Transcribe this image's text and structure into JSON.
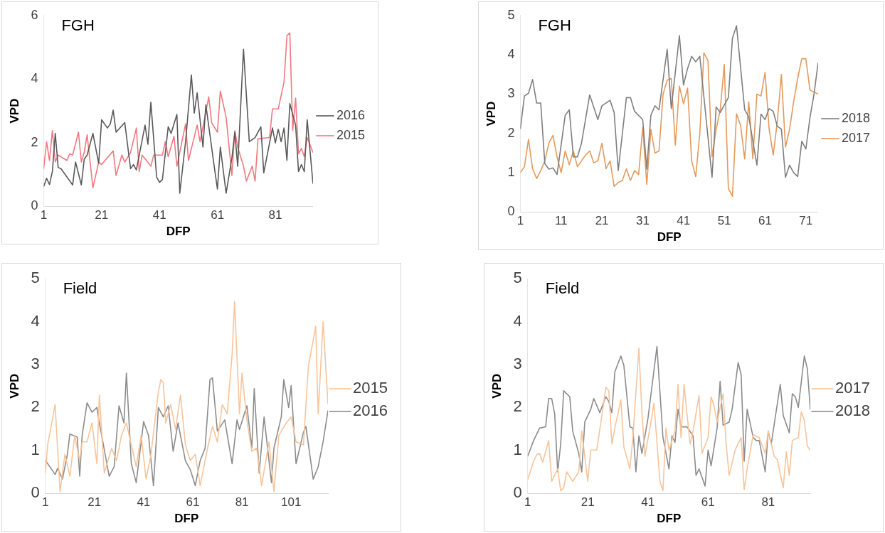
{
  "chart_data": [
    {
      "type": "line",
      "annotations": [
        "FGH"
      ],
      "xlabel": "DFP",
      "ylabel": "VPD",
      "xlim": [
        1,
        94
      ],
      "xticks": [
        1,
        21,
        41,
        61,
        81
      ],
      "ylim": [
        0,
        6
      ],
      "yticks": [
        0,
        2,
        4,
        6
      ],
      "grid": false,
      "legend": "right",
      "series": [
        {
          "name": "2016",
          "color": "#595959",
          "x": [
            1,
            2,
            3,
            4,
            5,
            6,
            7,
            11,
            12,
            14,
            15,
            16,
            18,
            20,
            21,
            23,
            24,
            25,
            26,
            29,
            31,
            32,
            33,
            36,
            37,
            38,
            40,
            41,
            42,
            44,
            45,
            47,
            48,
            50,
            52,
            53,
            54,
            56,
            57,
            60,
            61,
            62,
            64,
            66,
            67,
            68,
            70,
            72,
            74,
            76,
            77,
            80,
            81,
            82,
            83,
            84,
            85,
            86,
            88,
            89,
            90,
            91,
            92,
            94
          ],
          "values": [
            0.62,
            0.88,
            0.68,
            1.09,
            2.29,
            1.22,
            1.18,
            0.67,
            1.39,
            0.67,
            1.48,
            1.61,
            2.29,
            1.35,
            2.72,
            2.46,
            2.59,
            3.02,
            2.33,
            2.63,
            1.18,
            1.31,
            1.14,
            2.55,
            1.95,
            3.27,
            0.92,
            0.75,
            0.84,
            2.5,
            2.29,
            2.89,
            0.41,
            2.03,
            4.13,
            2.93,
            3.57,
            1.86,
            3.19,
            1.18,
            0.54,
            1.86,
            0.41,
            1.52,
            2.33,
            1.26,
            4.94,
            2.03,
            2.16,
            2.5,
            1.05,
            2.46,
            1.99,
            2.42,
            2.03,
            2.46,
            1.44,
            3.23,
            2.55,
            1.09,
            1.31,
            1.09,
            2.72,
            0.71
          ]
        },
        {
          "name": "2015",
          "color": "#f4777f",
          "x": [
            1,
            2,
            3,
            4,
            5,
            6,
            9,
            10,
            11,
            13,
            14,
            15,
            16,
            18,
            20,
            21,
            25,
            26,
            28,
            29,
            31,
            33,
            34,
            35,
            38,
            39,
            42,
            43,
            44,
            46,
            47,
            50,
            51,
            54,
            55,
            58,
            59,
            61,
            62,
            64,
            66,
            67,
            68,
            70,
            71,
            73,
            74,
            75,
            79,
            80,
            82,
            84,
            85,
            86,
            87,
            88,
            89,
            90,
            91,
            92,
            94
          ],
          "values": [
            1.18,
            2.03,
            1.44,
            2.38,
            1.39,
            1.61,
            1.44,
            1.65,
            1.61,
            2.33,
            1.39,
            1.69,
            2.25,
            0.58,
            1.39,
            1.31,
            1.74,
            0.97,
            1.61,
            1.39,
            1.69,
            2.46,
            1.09,
            1.61,
            1.26,
            1.61,
            1.61,
            2.03,
            1.56,
            2.2,
            1.26,
            2.59,
            1.44,
            2.55,
            2.03,
            3.44,
            2.63,
            2.33,
            3.62,
            2.8,
            0.97,
            2.38,
            1.86,
            1.26,
            0.79,
            1.26,
            0.79,
            2.12,
            2.16,
            3.06,
            3.06,
            3.91,
            5.37,
            5.45,
            2.38,
            3.4,
            1.65,
            1.82,
            1.56,
            2.16,
            1.69
          ]
        }
      ]
    },
    {
      "type": "line",
      "annotations": [
        "FGH"
      ],
      "xlabel": "DFP",
      "ylabel": "VPD",
      "xlim": [
        1,
        74
      ],
      "xticks": [
        1,
        11,
        21,
        31,
        41,
        51,
        61,
        71
      ],
      "ylim": [
        0,
        5
      ],
      "yticks": [
        0,
        1,
        2,
        3,
        4,
        5
      ],
      "grid": false,
      "legend": "right",
      "series": [
        {
          "name": "2018",
          "color": "#7f7f7f",
          "x": [
            1,
            2,
            3,
            4,
            5,
            6,
            7,
            8,
            9,
            10,
            12,
            13,
            14,
            15,
            16,
            18,
            20,
            21,
            23,
            24,
            25,
            27,
            28,
            29,
            31,
            32,
            33,
            34,
            35,
            37,
            38,
            40,
            41,
            42,
            43,
            44,
            45,
            48,
            49,
            50,
            52,
            53,
            54,
            56,
            57,
            59,
            60,
            61,
            62,
            63,
            64,
            65,
            66,
            67,
            68,
            69,
            70,
            71,
            72,
            73,
            74
          ],
          "values": [
            2.11,
            2.95,
            3.02,
            3.37,
            2.77,
            2.77,
            1.23,
            1.09,
            1.12,
            0.95,
            2.46,
            2.6,
            1.4,
            1.4,
            1.75,
            2.98,
            2.35,
            2.7,
            2.84,
            2.53,
            1.05,
            2.91,
            2.91,
            2.56,
            2.35,
            1.09,
            2.46,
            2.7,
            2.6,
            4.14,
            2.63,
            4.49,
            3.23,
            3.65,
            3.96,
            3.82,
            3.96,
            0.88,
            2.67,
            2.53,
            2.91,
            4.42,
            4.74,
            2.6,
            2.42,
            1.19,
            2.49,
            2.35,
            2.63,
            2.56,
            2.18,
            2.11,
            0.88,
            1.19,
            1.0,
            0.9,
            1.8,
            1.6,
            2.4,
            3.0,
            3.8
          ]
        },
        {
          "name": "2017",
          "color": "#e39a5c",
          "x": [
            1,
            2,
            3,
            4,
            5,
            6,
            7,
            8,
            9,
            10,
            11,
            12,
            13,
            14,
            15,
            16,
            17,
            18,
            19,
            20,
            21,
            22,
            23,
            24,
            25,
            26,
            27,
            28,
            29,
            30,
            31,
            32,
            33,
            34,
            35,
            36,
            37,
            38,
            39,
            40,
            41,
            42,
            43,
            44,
            45,
            46,
            47,
            48,
            49,
            50,
            51,
            52,
            53,
            54,
            55,
            56,
            57,
            58,
            59,
            60,
            61,
            62,
            63,
            64,
            65,
            66,
            67,
            68,
            69,
            70,
            71,
            72,
            73,
            74
          ],
          "values": [
            1.0,
            1.15,
            1.85,
            1.1,
            0.85,
            1.05,
            1.3,
            1.75,
            1.95,
            1.4,
            1.0,
            1.55,
            1.2,
            1.55,
            1.15,
            1.3,
            1.45,
            1.55,
            1.25,
            1.3,
            1.75,
            1.1,
            1.3,
            0.65,
            0.75,
            0.8,
            1.1,
            0.8,
            1.05,
            0.95,
            2.15,
            0.7,
            2.1,
            1.5,
            1.55,
            3.0,
            3.35,
            3.4,
            1.7,
            3.2,
            2.75,
            3.15,
            1.3,
            0.9,
            2.0,
            4.05,
            3.85,
            1.4,
            2.1,
            2.6,
            3.75,
            0.6,
            0.4,
            2.5,
            2.2,
            1.35,
            2.8,
            1.35,
            3.0,
            2.95,
            3.55,
            2.1,
            1.45,
            2.3,
            3.5,
            1.65,
            2.1,
            2.8,
            3.4,
            3.9,
            3.9,
            3.1,
            3.05,
            3.0
          ]
        }
      ]
    },
    {
      "type": "line",
      "annotations": [
        "Field"
      ],
      "xlabel": "DFP",
      "ylabel": "VPD",
      "xlim": [
        1,
        116
      ],
      "xticks": [
        1,
        21,
        41,
        61,
        81,
        101
      ],
      "ylim": [
        0,
        5
      ],
      "yticks": [
        0,
        1,
        2,
        3,
        4,
        5
      ],
      "grid": false,
      "legend": "right",
      "series": [
        {
          "name": "2015",
          "color": "#f8c49a",
          "x": [
            1,
            2,
            5,
            7,
            9,
            11,
            13,
            15,
            16,
            18,
            20,
            22,
            23,
            25,
            28,
            30,
            32,
            34,
            36,
            38,
            40,
            42,
            44,
            47,
            48,
            49,
            50,
            52,
            54,
            56,
            58,
            60,
            62,
            64,
            67,
            69,
            71,
            73,
            75,
            77,
            78,
            80,
            81,
            83,
            85,
            87,
            89,
            92,
            94,
            96,
            99,
            101,
            103,
            106,
            108,
            111,
            112,
            114,
            116
          ],
          "values": [
            0.47,
            1.13,
            2.07,
            0.04,
            0.91,
            0.4,
            1.35,
            0.76,
            1.2,
            1.2,
            1.64,
            0.69,
            2.29,
            0.47,
            1.05,
            0.76,
            1.35,
            1.64,
            1.13,
            0.62,
            1.35,
            0.33,
            0.91,
            2.36,
            2.65,
            2.58,
            1.64,
            2.07,
            1.49,
            2.29,
            1.13,
            0.76,
            0.91,
            0.18,
            1.05,
            1.56,
            1.2,
            2.07,
            1.85,
            3.24,
            4.47,
            1.85,
            2.8,
            1.71,
            0.98,
            1.05,
            0.18,
            1.2,
            0.04,
            1.35,
            1.64,
            1.78,
            1.2,
            1.13,
            2.95,
            3.89,
            1.85,
            4.0,
            2.07
          ]
        },
        {
          "name": "2016",
          "color": "#8c8c8c",
          "x": [
            1,
            2,
            5,
            6,
            8,
            10,
            11,
            14,
            15,
            16,
            18,
            20,
            22,
            23,
            27,
            29,
            31,
            33,
            34,
            36,
            38,
            41,
            43,
            45,
            47,
            49,
            51,
            53,
            55,
            58,
            60,
            62,
            64,
            66,
            68,
            69,
            71,
            74,
            77,
            79,
            80,
            83,
            85,
            86,
            88,
            90,
            93,
            94,
            97,
            98,
            100,
            101,
            103,
            106,
            107,
            110,
            112,
            114,
            116
          ],
          "values": [
            0.76,
            0.69,
            0.44,
            0.58,
            0.33,
            0.91,
            1.38,
            1.31,
            0.4,
            1.35,
            2.11,
            1.89,
            2.0,
            1.64,
            0.4,
            0.62,
            2.04,
            1.64,
            2.8,
            0.69,
            0.25,
            1.67,
            1.35,
            0.18,
            2.0,
            1.78,
            2.04,
            0.98,
            1.64,
            0.76,
            0.55,
            0.18,
            0.76,
            1.05,
            2.65,
            2.69,
            1.45,
            1.71,
            0.69,
            1.71,
            1.49,
            2.04,
            1.05,
            2.44,
            0.47,
            1.78,
            0.25,
            1.05,
            1.78,
            2.65,
            2.0,
            2.51,
            0.69,
            1.42,
            1.56,
            0.33,
            0.62,
            1.2,
            1.93
          ]
        }
      ]
    },
    {
      "type": "line",
      "annotations": [
        "Field"
      ],
      "xlabel": "DFP",
      "ylabel": "VPD",
      "xlim": [
        1,
        95
      ],
      "xticks": [
        1,
        21,
        41,
        61,
        81
      ],
      "ylim": [
        0,
        5
      ],
      "yticks": [
        0,
        1,
        2,
        3,
        4,
        5
      ],
      "grid": false,
      "legend": "right",
      "series": [
        {
          "name": "2017",
          "color": "#f8c49a",
          "x": [
            1,
            3,
            4,
            5,
            6,
            8,
            9,
            11,
            12,
            13,
            14,
            16,
            18,
            19,
            21,
            22,
            24,
            26,
            27,
            28,
            29,
            30,
            32,
            33,
            35,
            36,
            38,
            39,
            40,
            42,
            43,
            45,
            46,
            47,
            48,
            50,
            51,
            52,
            53,
            55,
            56,
            58,
            59,
            61,
            62,
            63,
            64,
            66,
            67,
            68,
            70,
            72,
            73,
            74,
            76,
            78,
            80,
            81,
            83,
            84,
            86,
            87,
            88,
            89,
            91,
            92,
            93,
            94,
            95
          ],
          "values": [
            0.31,
            0.75,
            0.9,
            0.93,
            0.72,
            1.23,
            0.28,
            0.57,
            0.06,
            0.13,
            0.5,
            0.28,
            0.5,
            1.45,
            0.28,
            1.01,
            1.01,
            1.96,
            2.47,
            2.39,
            1.15,
            1.52,
            2.18,
            1.08,
            0.57,
            1.3,
            3.38,
            1.88,
            0.86,
            1.66,
            2.1,
            0.28,
            0.06,
            1.52,
            1.01,
            1.45,
            2.54,
            1.3,
            2.54,
            1.15,
            1.45,
            2.28,
            0.93,
            1.3,
            2.25,
            2.03,
            1.66,
            2.32,
            1.15,
            0.42,
            1.01,
            1.3,
            0.09,
            0.57,
            1.37,
            1.3,
            0.93,
            1.45,
            0.86,
            0.79,
            0.13,
            0.97,
            0.42,
            1.23,
            1.3,
            1.9,
            1.7,
            1.1,
            1.0
          ]
        },
        {
          "name": "2018",
          "color": "#8c8c8c",
          "x": [
            1,
            3,
            5,
            7,
            8,
            9,
            10,
            11,
            12,
            13,
            15,
            16,
            18,
            19,
            20,
            22,
            23,
            25,
            27,
            28,
            29,
            30,
            32,
            33,
            35,
            36,
            37,
            38,
            39,
            41,
            44,
            46,
            48,
            49,
            50,
            51,
            52,
            54,
            56,
            57,
            58,
            60,
            61,
            62,
            64,
            65,
            66,
            68,
            69,
            71,
            72,
            73,
            74,
            76,
            77,
            78,
            80,
            81,
            82,
            85,
            86,
            88,
            89,
            90,
            91,
            92,
            93,
            94,
            95
          ],
          "values": [
            0.86,
            1.23,
            1.52,
            1.55,
            2.21,
            2.21,
            1.85,
            0.5,
            1.15,
            2.39,
            2.25,
            1.45,
            0.93,
            0.5,
            1.66,
            1.96,
            2.21,
            1.88,
            2.25,
            2.14,
            1.88,
            2.83,
            3.2,
            2.98,
            1.55,
            1.52,
            0.5,
            1.34,
            0.93,
            1.74,
            3.42,
            1.3,
            0.57,
            1.34,
            1.19,
            1.96,
            1.55,
            1.55,
            1.34,
            0.42,
            0.57,
            0.17,
            1.01,
            0.64,
            1.52,
            2.61,
            1.59,
            1.66,
            1.96,
            3.05,
            2.76,
            0.75,
            1.96,
            1.3,
            1.23,
            1.23,
            0.5,
            1.45,
            1.15,
            2.54,
            1.81,
            1.41,
            2.32,
            2.25,
            2.0,
            2.6,
            3.2,
            2.9,
            1.95
          ]
        }
      ]
    }
  ]
}
